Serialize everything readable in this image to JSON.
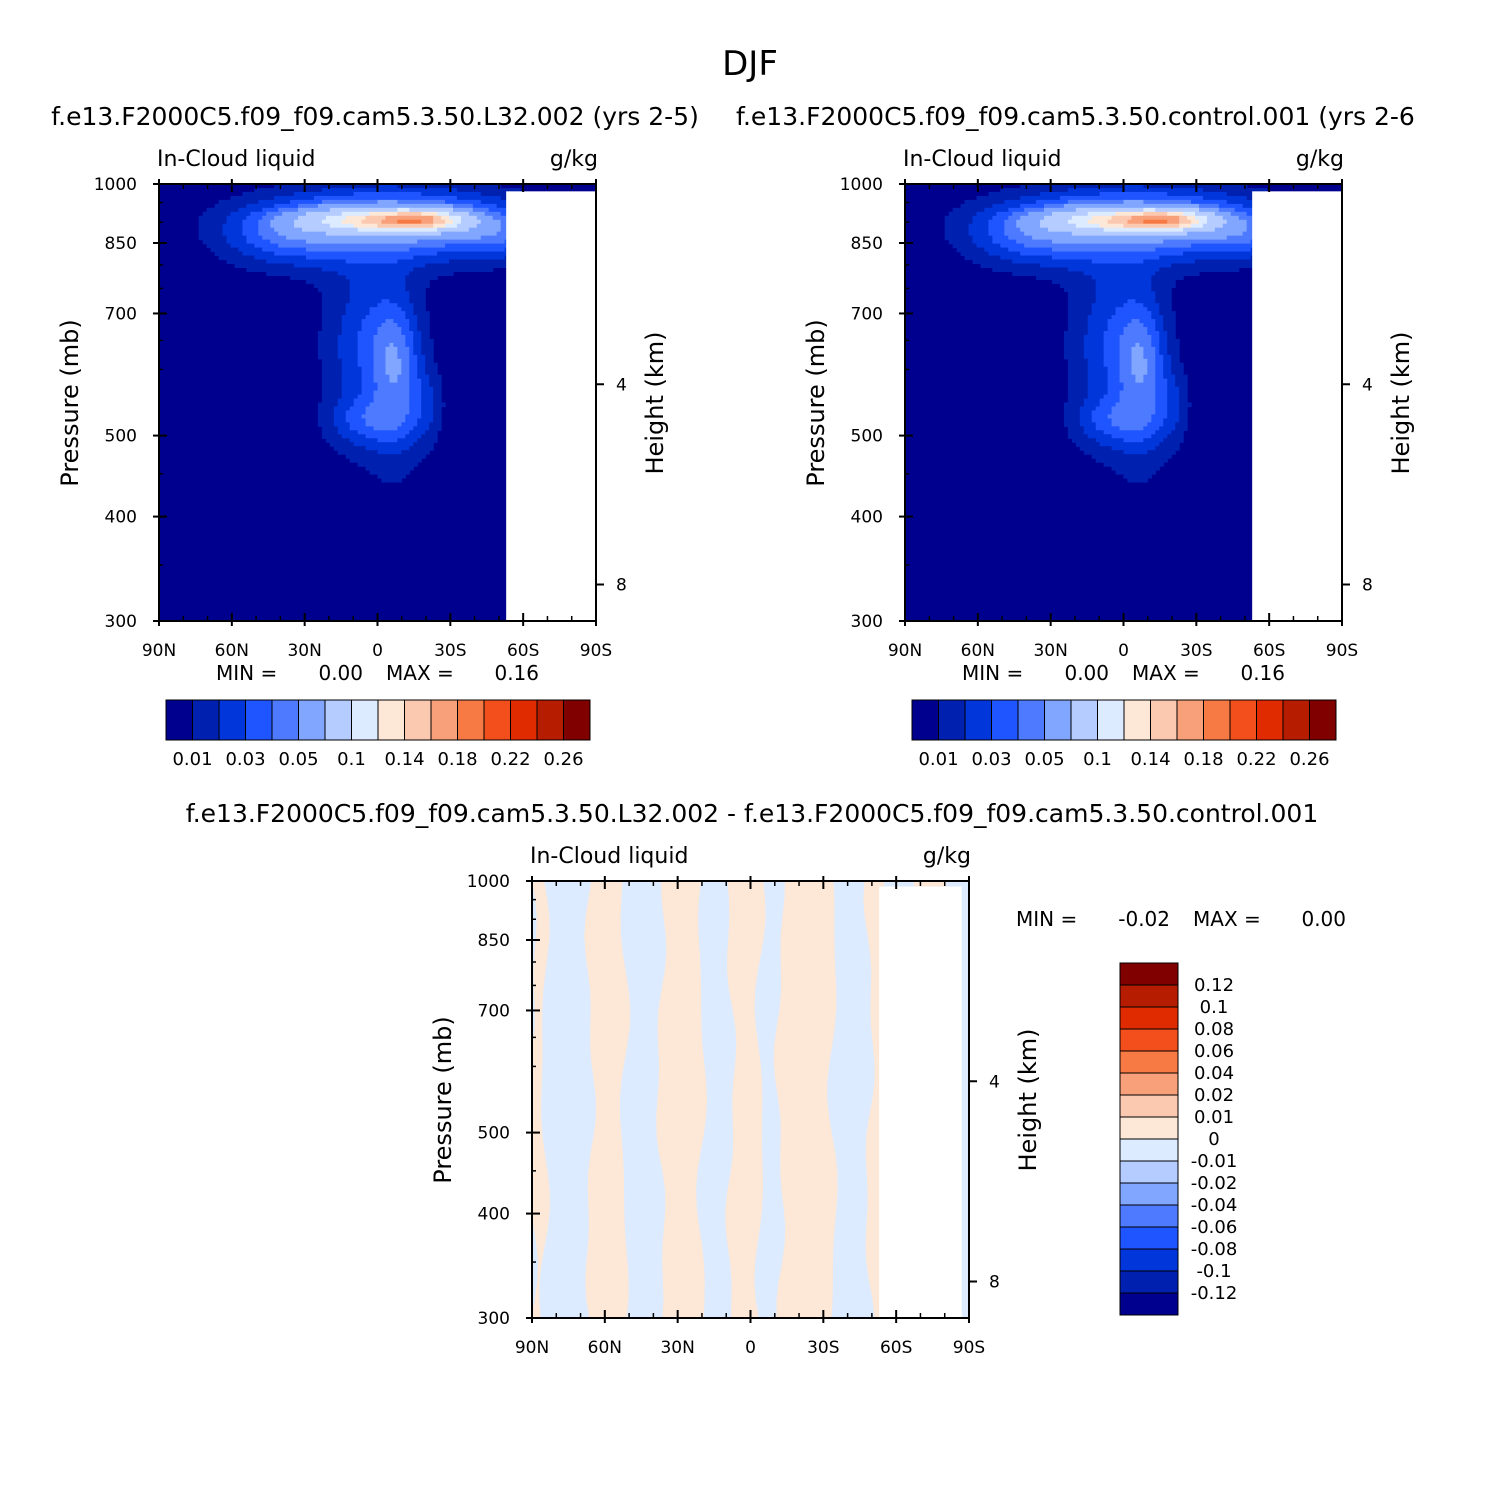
{
  "page_title": "DJF",
  "panels": [
    {
      "title": "f.e13.F2000C5.f09_f09.cam5.3.50.L32.002 (yrs 2-5)",
      "variable": "In-Cloud liquid",
      "units": "g/kg",
      "min_label": "MIN =",
      "min_value": "0.00",
      "max_label": "MAX =",
      "max_value": "0.16"
    },
    {
      "title": "f.e13.F2000C5.f09_f09.cam5.3.50.control.001 (yrs 2-6",
      "variable": "In-Cloud liquid",
      "units": "g/kg",
      "min_label": "MIN =",
      "min_value": "0.00",
      "max_label": "MAX =",
      "max_value": "0.16"
    },
    {
      "title": "f.e13.F2000C5.f09_f09.cam5.3.50.L32.002 - f.e13.F2000C5.f09_f09.cam5.3.50.control.001",
      "variable": "In-Cloud liquid",
      "units": "g/kg",
      "min_label": "MIN =",
      "min_value": "-0.02",
      "max_label": "MAX =",
      "max_value": "0.00"
    }
  ],
  "axes": {
    "ylabel_left": "Pressure (mb)",
    "ylabel_right": "Height (km)",
    "pressure_ticks": [
      "300",
      "400",
      "500",
      "700",
      "850",
      "1000"
    ],
    "height_ticks": [
      "8",
      "4"
    ],
    "lat_ticks": [
      "90N",
      "60N",
      "30N",
      "0",
      "30S",
      "60S",
      "90S"
    ]
  },
  "colorbars": {
    "field": {
      "colors": [
        "#00008f",
        "#0021b0",
        "#0036da",
        "#1f55ff",
        "#4d7aff",
        "#80a6ff",
        "#b4ccff",
        "#dcebff",
        "#fde7d6",
        "#fbc8b0",
        "#f8a07a",
        "#f77a45",
        "#f24f1d",
        "#e02a00",
        "#b51c00",
        "#800000"
      ],
      "labels": [
        "0.01",
        "0.03",
        "0.05",
        "0.1",
        "0.14",
        "0.18",
        "0.22",
        "0.26"
      ]
    },
    "diff": {
      "colors": [
        "#00008f",
        "#0021b0",
        "#0036da",
        "#1f55ff",
        "#4d7aff",
        "#80a6ff",
        "#b4ccff",
        "#dcebff",
        "#fde7d6",
        "#fbc8b0",
        "#f8a07a",
        "#f77a45",
        "#f24f1d",
        "#e02a00",
        "#b51c00",
        "#800000"
      ],
      "labels": [
        "-0.12",
        "-0.1",
        "-0.08",
        "-0.06",
        "-0.04",
        "-0.02",
        "-0.01",
        "0",
        "0.01",
        "0.02",
        "0.04",
        "0.06",
        "0.08",
        "0.1",
        "0.12"
      ]
    }
  },
  "chart_data": [
    {
      "type": "heatmap",
      "title": "f.e13.F2000C5.f09_f09.cam5.3.50.L32.002 (yrs 2-5)",
      "subtitle": "In-Cloud liquid",
      "units": "g/kg",
      "xlabel": "",
      "ylabel": "Pressure (mb)",
      "ylabel_right": "Height (km)",
      "x_range": [
        -90,
        90
      ],
      "x_orientation": "90N (left) to 90S (right); x = southward latitude",
      "y_range": [
        300,
        1000
      ],
      "y_reversed": true,
      "y_scale": "log",
      "x_ticks": [
        "90N",
        "60N",
        "30N",
        "0",
        "30S",
        "60S",
        "90S"
      ],
      "y_ticks": [
        300,
        400,
        500,
        700,
        850,
        1000
      ],
      "right_ticks": [
        8,
        4
      ],
      "min": 0.0,
      "max": 0.16,
      "contour_levels": [
        0.01,
        0.02,
        0.03,
        0.04,
        0.05,
        0.07,
        0.1,
        0.12,
        0.14,
        0.16,
        0.18,
        0.2,
        0.22,
        0.24,
        0.26
      ],
      "features": [
        {
          "x": 0,
          "y": 500,
          "value": 0.01
        },
        {
          "x": -5,
          "y": 580,
          "value": 0.06
        },
        {
          "x": -30,
          "y": 820,
          "value": 0.05
        },
        {
          "x": -10,
          "y": 900,
          "value": 0.14
        },
        {
          "x": 18,
          "y": 900,
          "value": 0.16
        },
        {
          "x": 40,
          "y": 850,
          "value": 0.07
        },
        {
          "x": 55,
          "y": 950,
          "value": 0.02
        }
      ]
    },
    {
      "type": "heatmap",
      "title": "f.e13.F2000C5.f09_f09.cam5.3.50.control.001 (yrs 2-6",
      "subtitle": "In-Cloud liquid",
      "units": "g/kg",
      "xlabel": "",
      "ylabel": "Pressure (mb)",
      "ylabel_right": "Height (km)",
      "x_range": [
        -90,
        90
      ],
      "x_orientation": "90N (left) to 90S (right); x = southward latitude",
      "y_range": [
        300,
        1000
      ],
      "y_reversed": true,
      "y_scale": "log",
      "x_ticks": [
        "90N",
        "60N",
        "30N",
        "0",
        "30S",
        "60S",
        "90S"
      ],
      "y_ticks": [
        300,
        400,
        500,
        700,
        850,
        1000
      ],
      "right_ticks": [
        8,
        4
      ],
      "min": 0.0,
      "max": 0.16,
      "contour_levels": [
        0.01,
        0.02,
        0.03,
        0.04,
        0.05,
        0.07,
        0.1,
        0.12,
        0.14,
        0.16,
        0.18,
        0.2,
        0.22,
        0.24,
        0.26
      ],
      "features": [
        {
          "x": 0,
          "y": 500,
          "value": 0.01
        },
        {
          "x": -5,
          "y": 580,
          "value": 0.06
        },
        {
          "x": -30,
          "y": 820,
          "value": 0.05
        },
        {
          "x": -10,
          "y": 900,
          "value": 0.14
        },
        {
          "x": 18,
          "y": 900,
          "value": 0.16
        },
        {
          "x": 40,
          "y": 850,
          "value": 0.07
        },
        {
          "x": 55,
          "y": 950,
          "value": 0.02
        }
      ]
    },
    {
      "type": "heatmap",
      "title": "f.e13.F2000C5.f09_f09.cam5.3.50.L32.002 - f.e13.F2000C5.f09_f09.cam5.3.50.control.001",
      "subtitle": "In-Cloud liquid",
      "units": "g/kg",
      "xlabel": "",
      "ylabel": "Pressure (mb)",
      "ylabel_right": "Height (km)",
      "x_range": [
        -90,
        90
      ],
      "x_orientation": "90N (left) to 90S (right); x = southward latitude",
      "y_range": [
        300,
        1000
      ],
      "y_reversed": true,
      "y_scale": "log",
      "x_ticks": [
        "90N",
        "60N",
        "30N",
        "0",
        "30S",
        "60S",
        "90S"
      ],
      "y_ticks": [
        300,
        400,
        500,
        700,
        850,
        1000
      ],
      "right_ticks": [
        8,
        4
      ],
      "min": -0.02,
      "max": 0.0,
      "contour_levels": [
        -0.12,
        -0.1,
        -0.08,
        -0.06,
        -0.04,
        -0.02,
        -0.01,
        0,
        0.01,
        0.02,
        0.04,
        0.06,
        0.08,
        0.1,
        0.12
      ],
      "bands": [
        {
          "x_from": -90,
          "x_to": -85,
          "sign": "positive"
        },
        {
          "x_from": -85,
          "x_to": -66,
          "sign": "negative"
        },
        {
          "x_from": -66,
          "x_to": -52,
          "sign": "positive"
        },
        {
          "x_from": -52,
          "x_to": -37,
          "sign": "negative"
        },
        {
          "x_from": -37,
          "x_to": -20,
          "sign": "positive"
        },
        {
          "x_from": -20,
          "x_to": -8,
          "sign": "negative"
        },
        {
          "x_from": -8,
          "x_to": 4,
          "sign": "positive"
        },
        {
          "x_from": 4,
          "x_to": 12,
          "sign": "negative"
        },
        {
          "x_from": 12,
          "x_to": 34,
          "sign": "positive"
        },
        {
          "x_from": 34,
          "x_to": 49,
          "sign": "negative"
        },
        {
          "x_from": 49,
          "x_to": 57,
          "sign": "positive"
        },
        {
          "x_from": 57,
          "x_to": 66,
          "sign": "negative"
        },
        {
          "x_from": 66,
          "x_to": 80,
          "sign": "positive"
        },
        {
          "x_from": 80,
          "x_to": 90,
          "sign": "negative"
        }
      ]
    }
  ]
}
